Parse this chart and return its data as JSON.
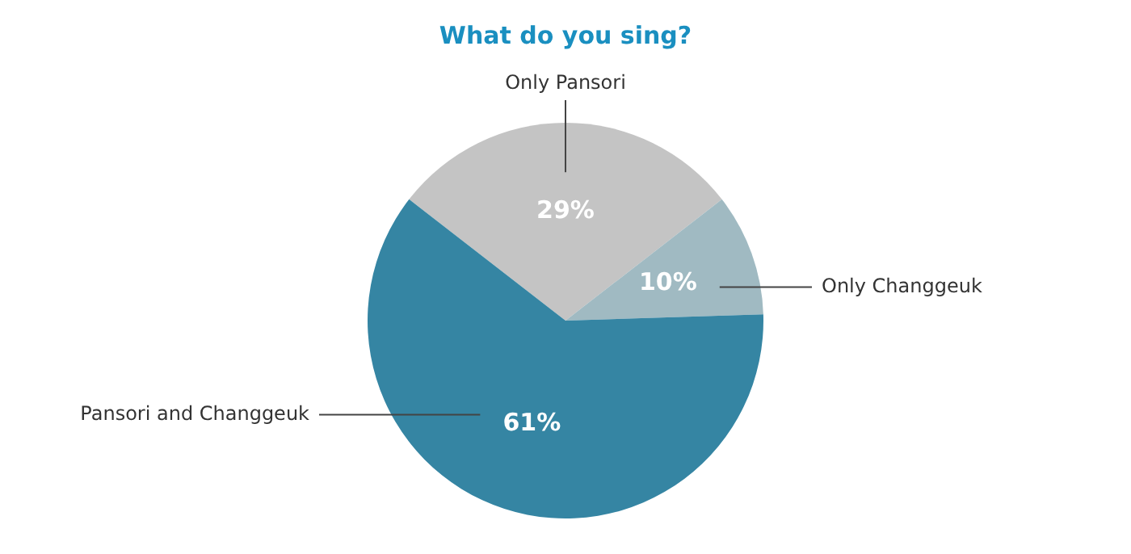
{
  "chart_data": {
    "type": "pie",
    "title": "What do you sing?",
    "categories": [
      "Only Pansori",
      "Only Changgeuk",
      "Pansori and Changgeuk"
    ],
    "values": [
      29,
      10,
      61
    ],
    "colors": [
      "#c4c4c4",
      "#a0bac2",
      "#3585a3"
    ],
    "value_labels": [
      "29%",
      "10%",
      "61%"
    ],
    "legend": false
  }
}
